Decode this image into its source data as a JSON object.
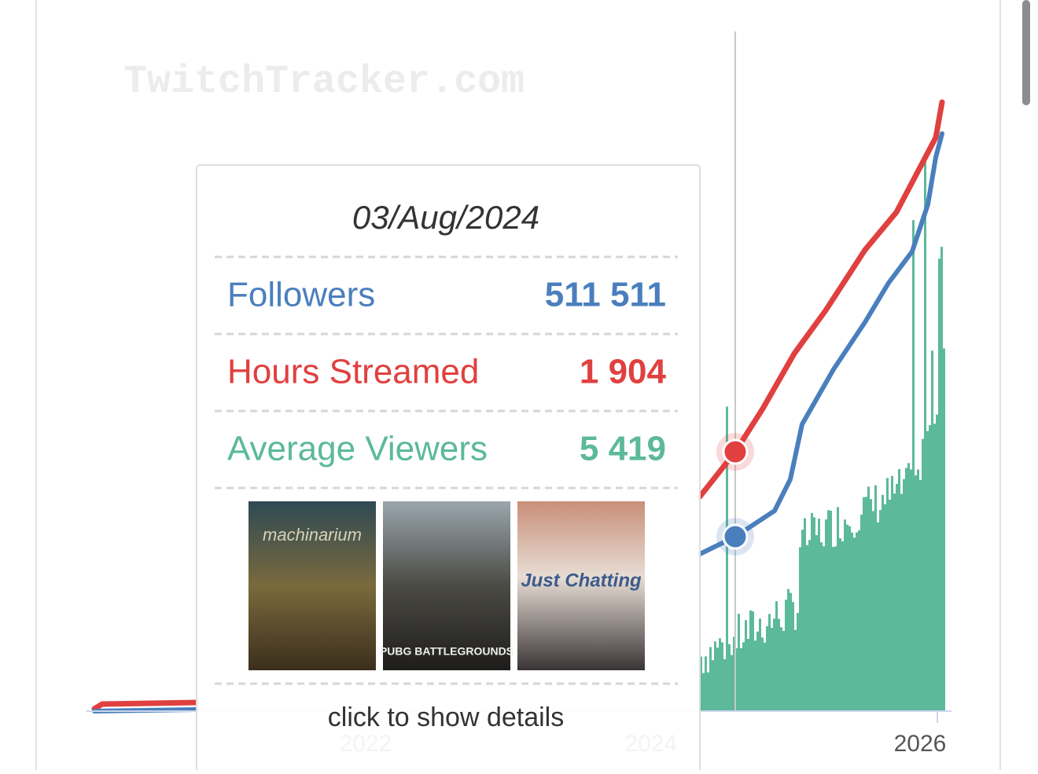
{
  "watermark": "TwitchTracker.com",
  "tooltip": {
    "date": "03/Aug/2024",
    "rows": [
      {
        "label": "Followers",
        "value": "511 511"
      },
      {
        "label": "Hours Streamed",
        "value": "1 904"
      },
      {
        "label": "Average Viewers",
        "value": "5 419"
      }
    ],
    "games": [
      "machinarium",
      "PUBG BATTLEGROUNDS",
      "Just Chatting"
    ],
    "footer": "click to show details"
  },
  "x_axis": {
    "labels": [
      "2022",
      "2024",
      "2026"
    ]
  }
}
